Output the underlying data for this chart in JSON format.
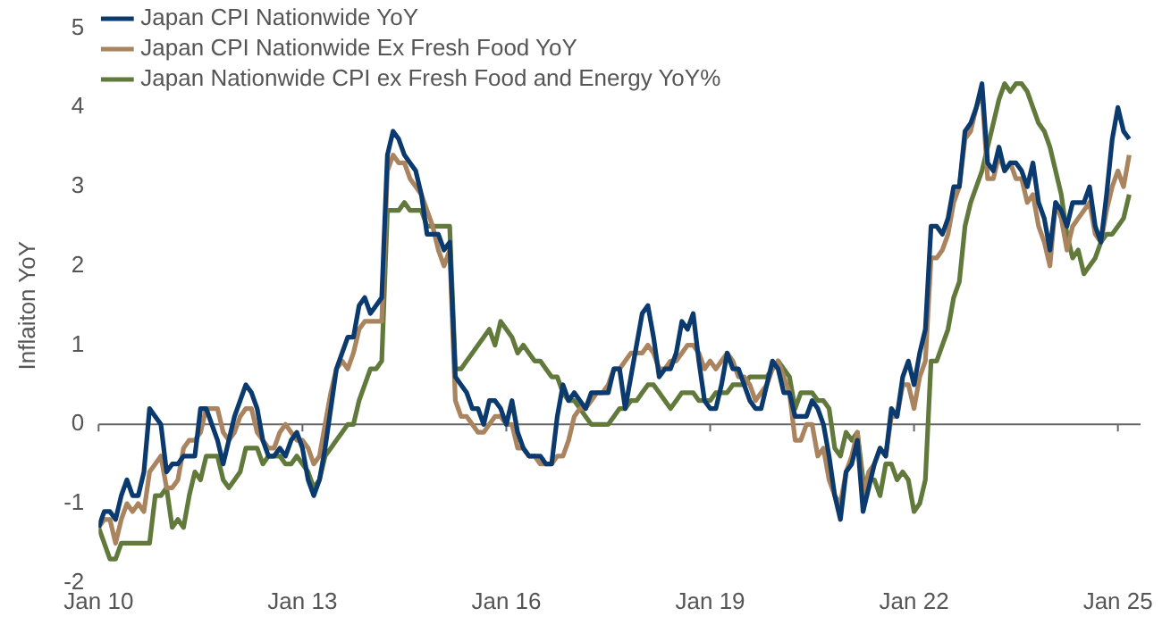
{
  "chart_data": {
    "type": "line",
    "ylabel": "Inflaiton YoY",
    "x": [
      "2010-01",
      "2010-02",
      "2010-03",
      "2010-04",
      "2010-05",
      "2010-06",
      "2010-07",
      "2010-08",
      "2010-09",
      "2010-10",
      "2010-11",
      "2010-12",
      "2011-01",
      "2011-02",
      "2011-03",
      "2011-04",
      "2011-05",
      "2011-06",
      "2011-07",
      "2011-08",
      "2011-09",
      "2011-10",
      "2011-11",
      "2011-12",
      "2012-01",
      "2012-02",
      "2012-03",
      "2012-04",
      "2012-05",
      "2012-06",
      "2012-07",
      "2012-08",
      "2012-09",
      "2012-10",
      "2012-11",
      "2012-12",
      "2013-01",
      "2013-02",
      "2013-03",
      "2013-04",
      "2013-05",
      "2013-06",
      "2013-07",
      "2013-08",
      "2013-09",
      "2013-10",
      "2013-11",
      "2013-12",
      "2014-01",
      "2014-02",
      "2014-03",
      "2014-04",
      "2014-05",
      "2014-06",
      "2014-07",
      "2014-08",
      "2014-09",
      "2014-10",
      "2014-11",
      "2014-12",
      "2015-01",
      "2015-02",
      "2015-03",
      "2015-04",
      "2015-05",
      "2015-06",
      "2015-07",
      "2015-08",
      "2015-09",
      "2015-10",
      "2015-11",
      "2015-12",
      "2016-01",
      "2016-02",
      "2016-03",
      "2016-04",
      "2016-05",
      "2016-06",
      "2016-07",
      "2016-08",
      "2016-09",
      "2016-10",
      "2016-11",
      "2016-12",
      "2017-01",
      "2017-02",
      "2017-03",
      "2017-04",
      "2017-05",
      "2017-06",
      "2017-07",
      "2017-08",
      "2017-09",
      "2017-10",
      "2017-11",
      "2017-12",
      "2018-01",
      "2018-02",
      "2018-03",
      "2018-04",
      "2018-05",
      "2018-06",
      "2018-07",
      "2018-08",
      "2018-09",
      "2018-10",
      "2018-11",
      "2018-12",
      "2019-01",
      "2019-02",
      "2019-03",
      "2019-04",
      "2019-05",
      "2019-06",
      "2019-07",
      "2019-08",
      "2019-09",
      "2019-10",
      "2019-11",
      "2019-12",
      "2020-01",
      "2020-02",
      "2020-03",
      "2020-04",
      "2020-05",
      "2020-06",
      "2020-07",
      "2020-08",
      "2020-09",
      "2020-10",
      "2020-11",
      "2020-12",
      "2021-01",
      "2021-02",
      "2021-03",
      "2021-04",
      "2021-05",
      "2021-06",
      "2021-07",
      "2021-08",
      "2021-09",
      "2021-10",
      "2021-11",
      "2021-12",
      "2022-01",
      "2022-02",
      "2022-03",
      "2022-04",
      "2022-05",
      "2022-06",
      "2022-07",
      "2022-08",
      "2022-09",
      "2022-10",
      "2022-11",
      "2022-12",
      "2023-01",
      "2023-02",
      "2023-03",
      "2023-04",
      "2023-05",
      "2023-06",
      "2023-07",
      "2023-08",
      "2023-09",
      "2023-10",
      "2023-11",
      "2023-12",
      "2024-01",
      "2024-02",
      "2024-03",
      "2024-04",
      "2024-05",
      "2024-06",
      "2024-07",
      "2024-08",
      "2024-09",
      "2024-10",
      "2024-11",
      "2024-12",
      "2025-01",
      "2025-02",
      "2025-03"
    ],
    "series": [
      {
        "name": "Japan CPI Nationwide YoY",
        "color": "#0b3a6e",
        "values": [
          -1.3,
          -1.1,
          -1.1,
          -1.2,
          -0.9,
          -0.7,
          -0.9,
          -0.9,
          -0.6,
          0.2,
          0.1,
          0.0,
          -0.6,
          -0.5,
          -0.5,
          -0.4,
          -0.4,
          -0.4,
          0.2,
          0.2,
          0.0,
          -0.2,
          -0.5,
          -0.2,
          0.1,
          0.3,
          0.5,
          0.4,
          0.2,
          -0.2,
          -0.4,
          -0.4,
          -0.3,
          -0.4,
          -0.2,
          -0.1,
          -0.3,
          -0.7,
          -0.9,
          -0.7,
          -0.3,
          0.2,
          0.7,
          0.9,
          1.1,
          1.1,
          1.5,
          1.6,
          1.4,
          1.5,
          1.6,
          3.4,
          3.7,
          3.6,
          3.4,
          3.3,
          3.2,
          2.9,
          2.4,
          2.4,
          2.4,
          2.2,
          2.3,
          0.6,
          0.5,
          0.4,
          0.2,
          0.2,
          0.0,
          0.3,
          0.3,
          0.2,
          0.0,
          0.3,
          -0.1,
          -0.3,
          -0.4,
          -0.4,
          -0.4,
          -0.5,
          -0.5,
          0.1,
          0.5,
          0.3,
          0.4,
          0.3,
          0.2,
          0.4,
          0.4,
          0.4,
          0.4,
          0.7,
          0.7,
          0.2,
          0.6,
          1.0,
          1.4,
          1.5,
          1.1,
          0.6,
          0.7,
          0.7,
          0.9,
          1.3,
          1.2,
          1.4,
          0.8,
          0.3,
          0.2,
          0.2,
          0.5,
          0.9,
          0.7,
          0.7,
          0.5,
          0.3,
          0.2,
          0.2,
          0.5,
          0.8,
          0.7,
          0.4,
          0.4,
          0.1,
          0.1,
          0.1,
          0.3,
          0.2,
          0.0,
          -0.4,
          -0.9,
          -1.2,
          -0.6,
          -0.5,
          -0.2,
          -1.1,
          -0.8,
          -0.5,
          -0.3,
          -0.4,
          0.2,
          0.1,
          0.6,
          0.8,
          0.5,
          0.9,
          1.2,
          2.5,
          2.5,
          2.4,
          2.6,
          3.0,
          3.0,
          3.7,
          3.8,
          4.0,
          4.3,
          3.3,
          3.2,
          3.5,
          3.2,
          3.3,
          3.3,
          3.2,
          3.0,
          3.3,
          2.8,
          2.6,
          2.2,
          2.8,
          2.7,
          2.5,
          2.8,
          2.8,
          2.8,
          3.0,
          2.5,
          2.3,
          2.9,
          3.6,
          4.0,
          3.7,
          3.6
        ]
      },
      {
        "name": "Japan CPI Nationwide Ex Fresh Food YoY",
        "color": "#a9845e",
        "values": [
          -1.3,
          -1.2,
          -1.2,
          -1.5,
          -1.2,
          -1.0,
          -1.1,
          -1.0,
          -1.1,
          -0.6,
          -0.5,
          -0.4,
          -0.8,
          -0.8,
          -0.7,
          -0.3,
          -0.2,
          -0.2,
          -0.1,
          0.2,
          0.2,
          0.2,
          -0.1,
          -0.2,
          -0.1,
          0.1,
          0.2,
          0.2,
          -0.1,
          -0.2,
          -0.3,
          -0.3,
          -0.1,
          0.0,
          -0.1,
          -0.2,
          -0.2,
          -0.3,
          -0.5,
          -0.4,
          0.0,
          0.4,
          0.7,
          0.8,
          0.7,
          0.9,
          1.2,
          1.3,
          1.3,
          1.3,
          1.3,
          3.2,
          3.4,
          3.3,
          3.3,
          3.1,
          3.0,
          2.9,
          2.7,
          2.5,
          2.2,
          2.0,
          2.2,
          0.3,
          0.1,
          0.1,
          0.0,
          -0.1,
          -0.1,
          0.0,
          0.1,
          0.1,
          0.0,
          0.0,
          -0.3,
          -0.3,
          -0.4,
          -0.4,
          -0.5,
          -0.5,
          -0.5,
          -0.4,
          -0.4,
          -0.2,
          0.1,
          0.2,
          0.2,
          0.3,
          0.4,
          0.4,
          0.5,
          0.7,
          0.7,
          0.8,
          0.9,
          0.9,
          0.9,
          1.0,
          0.9,
          0.7,
          0.7,
          0.8,
          0.8,
          0.9,
          1.0,
          1.0,
          0.9,
          0.7,
          0.8,
          0.7,
          0.8,
          0.9,
          0.8,
          0.6,
          0.6,
          0.5,
          0.3,
          0.4,
          0.5,
          0.7,
          0.8,
          0.6,
          0.4,
          -0.2,
          -0.2,
          0.0,
          0.0,
          -0.4,
          -0.3,
          -0.7,
          -0.9,
          -1.0,
          -0.6,
          -0.4,
          -0.1,
          -0.9,
          -0.6,
          -0.5,
          -0.3,
          -0.4,
          0.1,
          0.1,
          0.5,
          0.5,
          0.2,
          0.6,
          0.8,
          2.1,
          2.1,
          2.2,
          2.4,
          2.8,
          3.0,
          3.6,
          3.7,
          4.0,
          4.2,
          3.1,
          3.1,
          3.4,
          3.2,
          3.3,
          3.1,
          3.1,
          2.8,
          2.9,
          2.5,
          2.3,
          2.0,
          2.8,
          2.6,
          2.2,
          2.5,
          2.6,
          2.7,
          2.8,
          2.4,
          2.3,
          2.7,
          3.0,
          3.2,
          3.0,
          3.4
        ]
      },
      {
        "name": "Japan Nationwide CPI ex Fresh Food and Energy YoY%",
        "color": "#617a3c",
        "values": [
          -1.3,
          -1.5,
          -1.7,
          -1.7,
          -1.5,
          -1.5,
          -1.5,
          -1.5,
          -1.5,
          -1.5,
          -0.9,
          -0.9,
          -0.8,
          -1.3,
          -1.2,
          -1.3,
          -0.9,
          -0.6,
          -0.7,
          -0.4,
          -0.4,
          -0.4,
          -0.7,
          -0.8,
          -0.7,
          -0.6,
          -0.3,
          -0.3,
          -0.3,
          -0.5,
          -0.4,
          -0.4,
          -0.4,
          -0.5,
          -0.5,
          -0.4,
          -0.5,
          -0.6,
          -0.8,
          -0.7,
          -0.4,
          -0.3,
          -0.2,
          -0.1,
          0.0,
          0.0,
          0.3,
          0.5,
          0.7,
          0.7,
          0.8,
          2.7,
          2.7,
          2.7,
          2.8,
          2.7,
          2.7,
          2.7,
          2.5,
          2.5,
          2.5,
          2.5,
          2.5,
          0.7,
          0.7,
          0.8,
          0.9,
          1.0,
          1.1,
          1.2,
          1.0,
          1.3,
          1.2,
          1.1,
          0.9,
          1.0,
          0.9,
          0.8,
          0.8,
          0.7,
          0.6,
          0.6,
          0.4,
          0.3,
          0.3,
          0.2,
          0.1,
          0.0,
          0.0,
          0.0,
          0.0,
          0.1,
          0.2,
          0.2,
          0.3,
          0.3,
          0.4,
          0.5,
          0.5,
          0.4,
          0.3,
          0.2,
          0.3,
          0.4,
          0.4,
          0.4,
          0.3,
          0.3,
          0.3,
          0.4,
          0.4,
          0.4,
          0.5,
          0.5,
          0.5,
          0.6,
          0.6,
          0.6,
          0.6,
          0.7,
          0.8,
          0.7,
          0.6,
          0.2,
          0.4,
          0.4,
          0.4,
          0.3,
          0.3,
          0.2,
          -0.3,
          -0.4,
          -0.1,
          -0.2,
          -0.1,
          -0.7,
          -0.7,
          -0.7,
          -0.9,
          -0.5,
          -0.5,
          -0.7,
          -0.6,
          -0.7,
          -1.1,
          -1.0,
          -0.7,
          0.8,
          0.8,
          1.0,
          1.2,
          1.6,
          1.8,
          2.5,
          2.8,
          3.0,
          3.2,
          3.5,
          3.8,
          4.1,
          4.3,
          4.2,
          4.3,
          4.3,
          4.2,
          4.0,
          3.8,
          3.7,
          3.5,
          3.2,
          2.9,
          2.4,
          2.1,
          2.2,
          1.9,
          2.0,
          2.1,
          2.3,
          2.4,
          2.4,
          2.5,
          2.6,
          2.9
        ]
      }
    ],
    "xlim": [
      "2010-01",
      "2025-05"
    ],
    "xticks": [
      {
        "value": "2010-01",
        "label": "Jan 10"
      },
      {
        "value": "2013-01",
        "label": "Jan 13"
      },
      {
        "value": "2016-01",
        "label": "Jan 16"
      },
      {
        "value": "2019-01",
        "label": "Jan 19"
      },
      {
        "value": "2022-01",
        "label": "Jan 22"
      },
      {
        "value": "2025-01",
        "label": "Jan 25"
      }
    ],
    "ylim": [
      -2,
      5
    ],
    "yticks": [
      -2,
      -1,
      0,
      1,
      2,
      3,
      4,
      5
    ],
    "ref_lines": [
      {
        "axis": "y",
        "value": 0,
        "color": "#666666"
      }
    ],
    "grid": false,
    "legend": "top left",
    "marker": "none",
    "line_style": "solid"
  }
}
